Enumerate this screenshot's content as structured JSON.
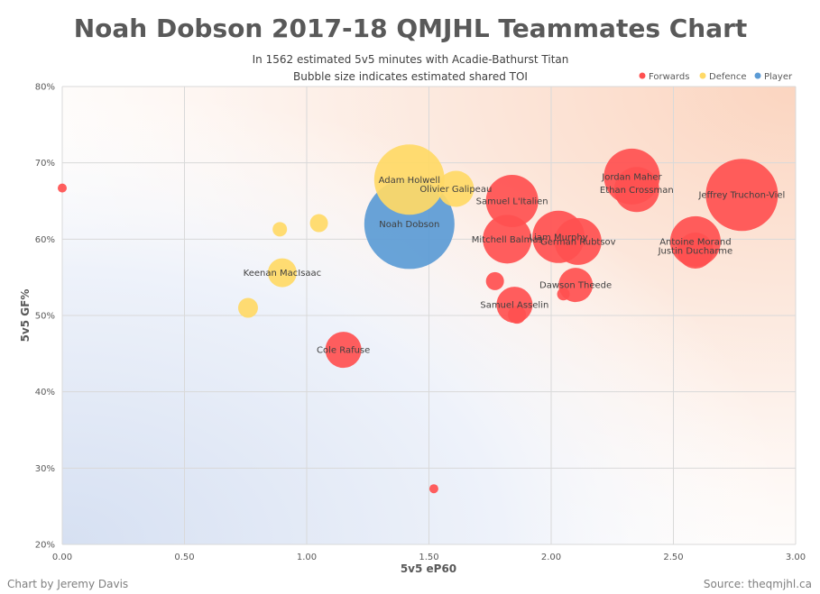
{
  "chart_data": {
    "type": "scatter",
    "title": "Noah Dobson 2017-18 QMJHL Teammates Chart",
    "subtitle": [
      "In 1562 estimated 5v5 minutes with Acadie-Bathurst Titan",
      "Bubble size indicates estimated shared TOI"
    ],
    "xlabel": "5v5 eP60",
    "ylabel": "5v5 GF%",
    "xlim": [
      0,
      3
    ],
    "ylim": [
      0.2,
      0.8
    ],
    "x_ticks": [
      "0.00",
      "0.50",
      "1.00",
      "1.50",
      "2.00",
      "2.50",
      "3.00"
    ],
    "y_ticks": [
      "20%",
      "30%",
      "40%",
      "50%",
      "60%",
      "70%",
      "80%"
    ],
    "grid": true,
    "legend_position": "top-right",
    "series": [
      {
        "name": "Forwards",
        "color": "#ff5050",
        "points": [
          {
            "label": "Jeffrey Truchon-Viel",
            "x": 2.78,
            "y": 0.658,
            "size": 40
          },
          {
            "label": "Jordan Maher",
            "x": 2.33,
            "y": 0.682,
            "size": 31
          },
          {
            "label": "Ethan Crossman",
            "x": 2.35,
            "y": 0.665,
            "size": 25
          },
          {
            "label": "Antoine Morand",
            "x": 2.59,
            "y": 0.597,
            "size": 28
          },
          {
            "label": "Justin Ducharme",
            "x": 2.59,
            "y": 0.585,
            "size": 20
          },
          {
            "label": "Samuel L'Italien",
            "x": 1.84,
            "y": 0.65,
            "size": 29
          },
          {
            "label": "Liam Murphy",
            "x": 2.03,
            "y": 0.603,
            "size": 29
          },
          {
            "label": "German Rubtsov",
            "x": 2.11,
            "y": 0.597,
            "size": 26
          },
          {
            "label": "Mitchell Balmas",
            "x": 1.82,
            "y": 0.6,
            "size": 27
          },
          {
            "label": "Dawson Theede",
            "x": 2.1,
            "y": 0.54,
            "size": 19
          },
          {
            "label": "Samuel Asselin",
            "x": 1.85,
            "y": 0.514,
            "size": 20
          },
          {
            "label": "Cole Rafuse",
            "x": 1.15,
            "y": 0.455,
            "size": 20
          },
          {
            "label": "",
            "x": 0.0,
            "y": 0.667,
            "size": 5
          },
          {
            "label": "",
            "x": 1.77,
            "y": 0.545,
            "size": 10
          },
          {
            "label": "",
            "x": 1.86,
            "y": 0.501,
            "size": 10
          },
          {
            "label": "",
            "x": 2.05,
            "y": 0.528,
            "size": 7
          },
          {
            "label": "",
            "x": 1.52,
            "y": 0.273,
            "size": 5
          }
        ]
      },
      {
        "name": "Defence",
        "color": "#ffd966",
        "points": [
          {
            "label": "Adam Holwell",
            "x": 1.42,
            "y": 0.678,
            "size": 39
          },
          {
            "label": "Olivier Galipeau",
            "x": 1.61,
            "y": 0.666,
            "size": 20
          },
          {
            "label": "Keenan MacIsaac",
            "x": 0.9,
            "y": 0.556,
            "size": 16
          },
          {
            "label": "",
            "x": 1.05,
            "y": 0.621,
            "size": 10
          },
          {
            "label": "",
            "x": 0.89,
            "y": 0.613,
            "size": 8
          },
          {
            "label": "",
            "x": 0.76,
            "y": 0.51,
            "size": 11
          }
        ]
      },
      {
        "name": "Player",
        "color": "#5b9bd5",
        "points": [
          {
            "label": "Noah Dobson",
            "x": 1.42,
            "y": 0.62,
            "size": 50
          }
        ]
      }
    ]
  },
  "footer": {
    "left": "Chart by Jeremy Davis",
    "right": "Source: theqmjhl.ca"
  }
}
